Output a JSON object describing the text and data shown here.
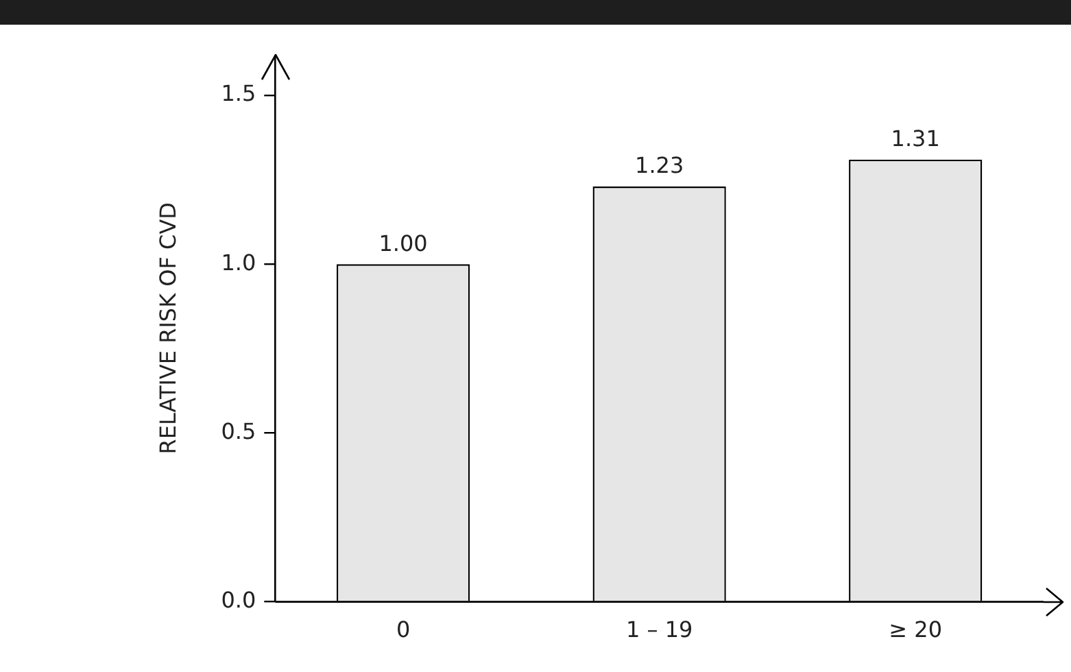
{
  "chart_data": {
    "type": "bar",
    "ylabel": "RELATIVE RISK OF CVD",
    "categories": [
      "0",
      "1 – 19",
      "≥ 20"
    ],
    "values": [
      1.0,
      1.23,
      1.31
    ],
    "color": "#e6e6e6",
    "ylim": [
      0,
      1.62
    ],
    "yticks": [
      {
        "value": 0,
        "label": "0.0"
      },
      {
        "value": 0.5,
        "label": "0.5"
      },
      {
        "value": 1,
        "label": "1.0"
      },
      {
        "value": 1.5,
        "label": "1.5"
      }
    ],
    "data_labels": true,
    "value_labels": [
      "1.00",
      "1.23",
      "1.31"
    ],
    "grid": false,
    "legend": false
  }
}
